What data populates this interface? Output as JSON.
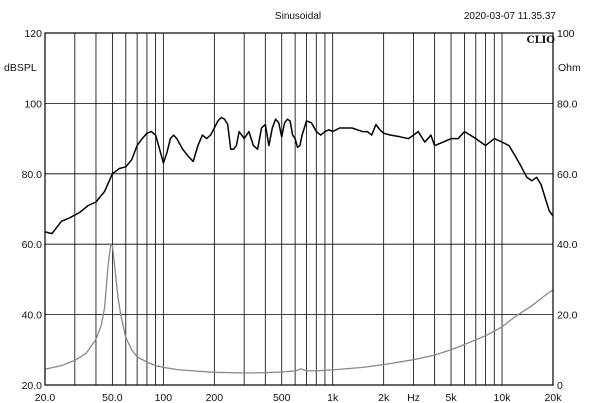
{
  "header": {
    "title": "Sinusoidal",
    "timestamp": "2020-03-07 11.35.37",
    "logo": "CLIO"
  },
  "colors": {
    "spl": "#000000",
    "impedance": "#888888",
    "grid": "#000000",
    "background": "#ffffff"
  },
  "chart_data": {
    "type": "line",
    "title": "Sinusoidal",
    "x_scale": "log",
    "xlim": [
      20,
      20000
    ],
    "x_tick_labels": [
      "20.0",
      "50.0",
      "100",
      "200",
      "500",
      "1k",
      "2k",
      "Hz",
      "5k",
      "10k",
      "20k"
    ],
    "y_left": {
      "label": "dBSPL",
      "lim": [
        20,
        120
      ],
      "tick_labels": [
        "20.0",
        "40.0",
        "60.0",
        "80.0",
        "100",
        "120"
      ]
    },
    "y_right": {
      "label": "Ohm",
      "lim": [
        0,
        100
      ],
      "tick_labels": [
        "0",
        "20.0",
        "40.0",
        "60.0",
        "80.0",
        "100"
      ]
    },
    "grid": true,
    "series": [
      {
        "axis": "left",
        "x": [
          20,
          22,
          25,
          28,
          32,
          36,
          40,
          45,
          50,
          55,
          60,
          65,
          70,
          75,
          80,
          85,
          90,
          95,
          100,
          105,
          110,
          115,
          120,
          130,
          140,
          150,
          160,
          170,
          180,
          190,
          200,
          210,
          220,
          230,
          240,
          250,
          260,
          270,
          280,
          300,
          320,
          340,
          360,
          380,
          400,
          420,
          440,
          460,
          480,
          500,
          520,
          540,
          560,
          580,
          600,
          620,
          640,
          660,
          680,
          700,
          750,
          800,
          850,
          900,
          950,
          1000,
          1100,
          1200,
          1300,
          1400,
          1500,
          1600,
          1700,
          1800,
          1900,
          2000,
          2200,
          2500,
          2800,
          3000,
          3200,
          3500,
          3800,
          4000,
          4500,
          5000,
          5500,
          6000,
          6500,
          7000,
          8000,
          9000,
          10000,
          11000,
          12000,
          13000,
          14000,
          15000,
          16000,
          17000,
          18000,
          19000,
          20000
        ],
        "values": [
          63.5,
          63,
          66.5,
          67.5,
          69,
          71,
          72,
          75,
          80,
          81.5,
          82,
          84,
          88,
          90,
          91.5,
          92,
          91,
          87,
          83,
          86,
          90,
          91,
          90,
          87,
          85,
          83.5,
          88,
          91,
          90,
          91,
          93,
          95,
          96,
          95.5,
          94,
          87,
          87,
          88,
          92,
          90,
          92,
          88,
          87,
          93,
          94,
          88,
          93,
          95.5,
          94.5,
          90.5,
          94.5,
          95.5,
          95,
          91,
          90,
          87.5,
          88,
          91,
          93,
          95,
          94.5,
          92,
          91,
          92,
          92.5,
          92,
          93,
          93,
          93,
          92.5,
          92,
          92,
          91,
          94,
          92.5,
          91.5,
          91,
          90.5,
          90,
          91,
          92,
          89,
          91,
          88,
          89,
          90,
          90,
          92,
          91,
          90,
          88,
          90,
          89,
          88,
          85,
          82,
          79,
          78,
          79,
          77,
          73,
          69.5,
          68
        ]
      },
      {
        "axis": "right",
        "x": [
          20,
          25,
          30,
          35,
          40,
          43,
          45,
          47,
          48,
          49,
          50,
          51,
          52,
          54,
          56,
          60,
          65,
          70,
          80,
          90,
          100,
          120,
          150,
          200,
          300,
          400,
          500,
          600,
          650,
          700,
          800,
          1000,
          1500,
          2000,
          3000,
          4000,
          5000,
          6000,
          8000,
          10000,
          12000,
          15000,
          18000,
          20000
        ],
        "values": [
          4.5,
          5.5,
          7,
          9,
          13,
          17,
          22,
          33,
          37,
          40,
          39.5,
          36,
          32,
          25,
          20,
          13.5,
          10,
          8,
          6.5,
          5.5,
          5,
          4.4,
          4,
          3.6,
          3.4,
          3.5,
          3.7,
          4,
          4.6,
          4,
          4,
          4.3,
          5,
          5.8,
          7.2,
          8.5,
          10,
          11.5,
          14,
          16.5,
          19.5,
          22.5,
          25.5,
          27
        ]
      }
    ]
  }
}
